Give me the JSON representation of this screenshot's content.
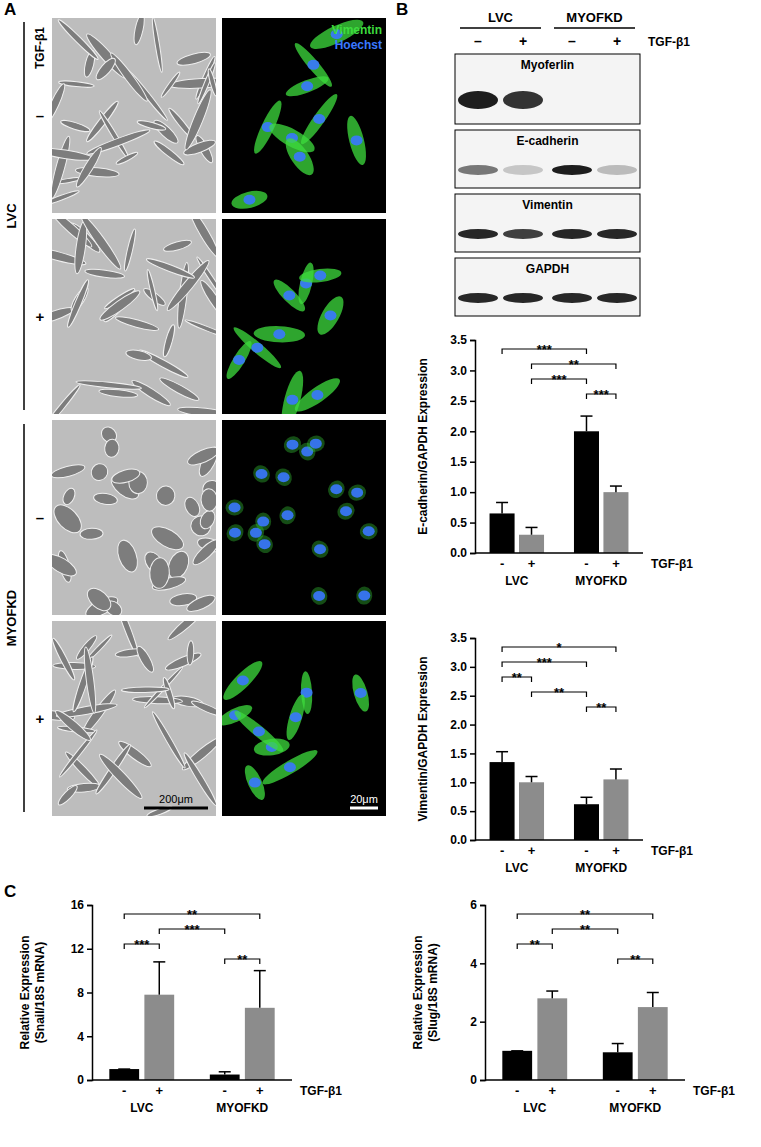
{
  "figure": {
    "panel_labels": [
      "A",
      "B",
      "C"
    ],
    "micrographs": {
      "treatment_label": "TGF-β1",
      "groups": [
        "LVC",
        "MYOFKD"
      ],
      "conditions": [
        "–",
        "+"
      ],
      "stains": [
        {
          "name": "Vimentin",
          "color": "#3ddc3d"
        },
        {
          "name": "Hoechst",
          "color": "#3a78ff"
        }
      ],
      "scale_bars": [
        "200μm",
        "20μm"
      ]
    },
    "blot": {
      "groups": [
        "LVC",
        "MYOFKD"
      ],
      "treatment_label": "TGF-β1",
      "conditions": [
        "–",
        "+"
      ],
      "proteins": [
        "Myoferlin",
        "E-cadherin",
        "Vimentin",
        "GAPDH"
      ]
    }
  },
  "chart_data": [
    {
      "type": "bar",
      "ylabel": "E-cadherin/GAPDH Expression",
      "xlabel": "TGF-β1",
      "categories": [
        "LVC",
        "MYOFKD"
      ],
      "series": [
        {
          "name": "-",
          "color": "#000000",
          "values": [
            0.65,
            2.0
          ],
          "errors": [
            0.18,
            0.25
          ]
        },
        {
          "name": "+",
          "color": "#8c8c8c",
          "values": [
            0.3,
            1.0
          ],
          "errors": [
            0.12,
            0.1
          ]
        }
      ],
      "ylim": [
        0,
        3.5
      ],
      "yticks": [
        {
          "value": 0,
          "label": "0.0"
        },
        {
          "value": 0.5,
          "label": "0.5"
        },
        {
          "value": 1,
          "label": "1.0"
        },
        {
          "value": 1.5,
          "label": "1.5"
        },
        {
          "value": 2,
          "label": "2.0"
        },
        {
          "value": 2.5,
          "label": "2.5"
        },
        {
          "value": 3,
          "label": "3.0"
        },
        {
          "value": 3.5,
          "label": "3.5"
        }
      ],
      "annotations": [
        {
          "text": "***",
          "from": [
            0,
            0
          ],
          "to": [
            1,
            0
          ]
        },
        {
          "text": "**",
          "from": [
            0,
            1
          ],
          "to": [
            1,
            1
          ]
        },
        {
          "text": "***",
          "from": [
            0,
            1
          ],
          "to": [
            1,
            0
          ]
        },
        {
          "text": "***",
          "from": [
            1,
            0
          ],
          "to": [
            1,
            1
          ]
        }
      ]
    },
    {
      "type": "bar",
      "ylabel": "Vimentin/GAPDH Expression",
      "xlabel": "TGF-β1",
      "categories": [
        "LVC",
        "MYOFKD"
      ],
      "series": [
        {
          "name": "-",
          "color": "#000000",
          "values": [
            1.35,
            0.62
          ],
          "errors": [
            0.18,
            0.12
          ]
        },
        {
          "name": "+",
          "color": "#8c8c8c",
          "values": [
            1.0,
            1.05
          ],
          "errors": [
            0.1,
            0.18
          ]
        }
      ],
      "ylim": [
        0,
        3.5
      ],
      "yticks": [
        {
          "value": 0,
          "label": "0.0"
        },
        {
          "value": 0.5,
          "label": "0.5"
        },
        {
          "value": 1,
          "label": "1.0"
        },
        {
          "value": 1.5,
          "label": "1.5"
        },
        {
          "value": 2,
          "label": "2.0"
        },
        {
          "value": 2.5,
          "label": "2.5"
        },
        {
          "value": 3,
          "label": "3.0"
        },
        {
          "value": 3.5,
          "label": "3.5"
        }
      ],
      "annotations": [
        {
          "text": "*",
          "from": [
            0,
            0
          ],
          "to": [
            1,
            1
          ]
        },
        {
          "text": "***",
          "from": [
            0,
            0
          ],
          "to": [
            1,
            0
          ]
        },
        {
          "text": "**",
          "from": [
            0,
            0
          ],
          "to": [
            0,
            1
          ]
        },
        {
          "text": "**",
          "from": [
            0,
            1
          ],
          "to": [
            1,
            0
          ]
        },
        {
          "text": "**",
          "from": [
            1,
            0
          ],
          "to": [
            1,
            1
          ]
        }
      ]
    },
    {
      "type": "bar",
      "ylabel": [
        "Relative Expression",
        "(Snail/18S mRNA)"
      ],
      "xlabel": "TGF-β1",
      "categories": [
        "LVC",
        "MYOFKD"
      ],
      "series": [
        {
          "name": "-",
          "color": "#000000",
          "values": [
            1.0,
            0.5
          ],
          "errors": [
            0,
            0.25
          ]
        },
        {
          "name": "+",
          "color": "#8c8c8c",
          "values": [
            7.8,
            6.6
          ],
          "errors": [
            3.0,
            3.4
          ]
        }
      ],
      "ylim": [
        0,
        16
      ],
      "yticks": [
        0,
        4,
        8,
        12,
        16
      ],
      "annotations": [
        {
          "text": "**",
          "from": [
            0,
            0
          ],
          "to": [
            1,
            1
          ]
        },
        {
          "text": "***",
          "from": [
            0,
            1
          ],
          "to": [
            1,
            0
          ]
        },
        {
          "text": "***",
          "from": [
            0,
            0
          ],
          "to": [
            0,
            1
          ]
        },
        {
          "text": "**",
          "from": [
            1,
            0
          ],
          "to": [
            1,
            1
          ]
        }
      ]
    },
    {
      "type": "bar",
      "ylabel": [
        "Relative Expression",
        "(Slug/18S mRNA)"
      ],
      "xlabel": "TGF-β1",
      "categories": [
        "LVC",
        "MYOFKD"
      ],
      "series": [
        {
          "name": "-",
          "color": "#000000",
          "values": [
            1.0,
            0.95
          ],
          "errors": [
            0,
            0.3
          ]
        },
        {
          "name": "+",
          "color": "#8c8c8c",
          "values": [
            2.8,
            2.5
          ],
          "errors": [
            0.25,
            0.5
          ]
        }
      ],
      "ylim": [
        0,
        6
      ],
      "yticks": [
        0,
        2,
        4,
        6
      ],
      "annotations": [
        {
          "text": "**",
          "from": [
            0,
            0
          ],
          "to": [
            1,
            1
          ]
        },
        {
          "text": "**",
          "from": [
            0,
            1
          ],
          "to": [
            1,
            0
          ]
        },
        {
          "text": "**",
          "from": [
            0,
            0
          ],
          "to": [
            0,
            1
          ]
        },
        {
          "text": "**",
          "from": [
            1,
            0
          ],
          "to": [
            1,
            1
          ]
        }
      ]
    }
  ]
}
